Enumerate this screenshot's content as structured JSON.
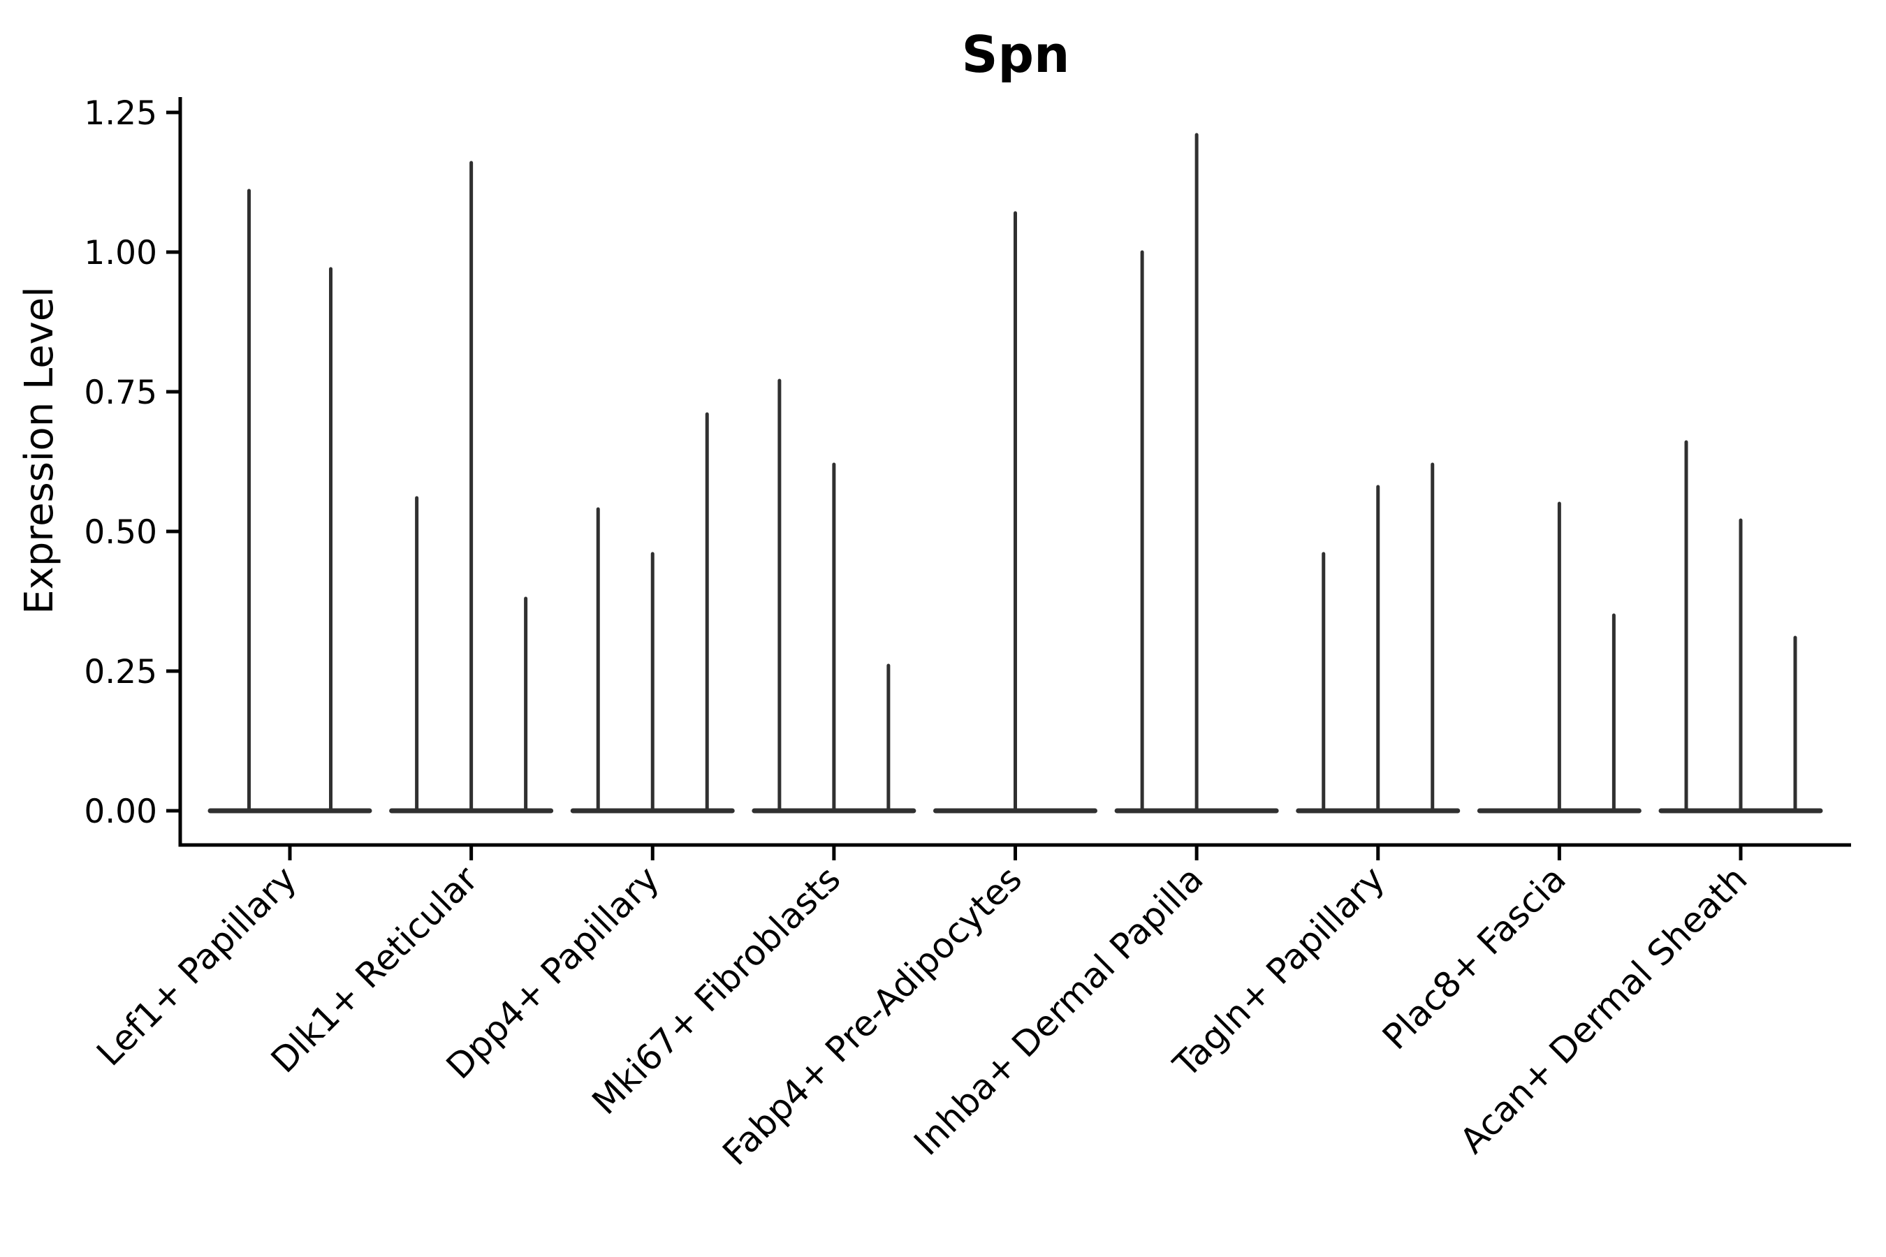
{
  "title": "Spn",
  "ylabel": "Expression Level",
  "colors": {
    "violin_line": "#303030",
    "axis": "#000000",
    "background": "#ffffff",
    "text": "#000000"
  },
  "chart_data": {
    "type": "violin",
    "title": "Spn",
    "xlabel": "",
    "ylabel": "Expression Level",
    "ylim": [
      0,
      1.25
    ],
    "yticks": [
      0.0,
      0.25,
      0.5,
      0.75,
      1.0,
      1.25
    ],
    "ytick_labels": [
      "0.00",
      "0.25",
      "0.50",
      "0.75",
      "1.00",
      "1.25"
    ],
    "grid": false,
    "legend": "none",
    "categories": [
      "Lef1+ Papillary",
      "Dlk1+ Reticular",
      "Dpp4+ Papillary",
      "Mki67+ Fibroblasts",
      "Fabp4+ Pre-Adipocytes",
      "Inhba+ Dermal Papilla",
      "Tagln+ Papillary",
      "Plac8+ Fascia",
      "Acan+ Dermal Sheath"
    ],
    "series": [
      {
        "name": "Lef1+ Papillary",
        "values": [
          1.11,
          0.97
        ]
      },
      {
        "name": "Dlk1+ Reticular",
        "values": [
          0.56,
          1.16,
          0.38
        ]
      },
      {
        "name": "Dpp4+ Papillary",
        "values": [
          0.54,
          0.46,
          0.71
        ]
      },
      {
        "name": "Mki67+ Fibroblasts",
        "values": [
          0.77,
          0.62,
          0.26
        ]
      },
      {
        "name": "Fabp4+ Pre-Adipocytes",
        "values": [
          0,
          1.07,
          0
        ]
      },
      {
        "name": "Inhba+ Dermal Papilla",
        "values": [
          1.0,
          1.21,
          0
        ]
      },
      {
        "name": "Tagln+ Papillary",
        "values": [
          0.46,
          0.58,
          0.62
        ]
      },
      {
        "name": "Plac8+ Fascia",
        "values": [
          0,
          0.55,
          0.35
        ]
      },
      {
        "name": "Acan+ Dermal Sheath",
        "values": [
          0.66,
          0.52,
          0.31
        ]
      }
    ]
  }
}
